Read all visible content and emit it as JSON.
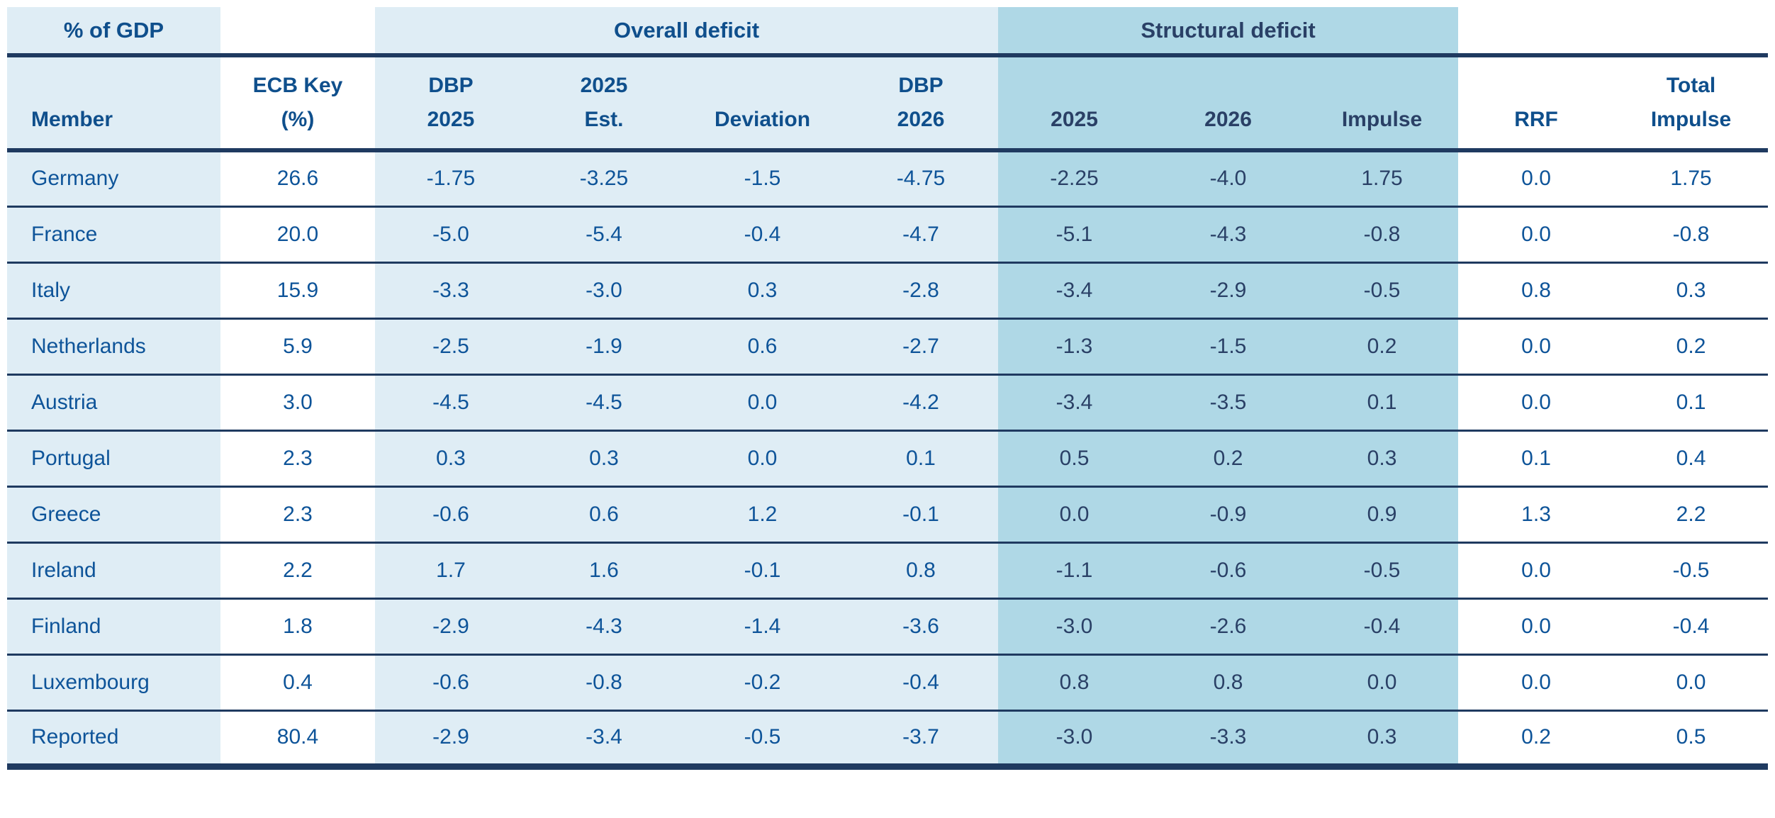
{
  "colors": {
    "light-bg": "#dfedf5",
    "structural-bg": "#afd8e6",
    "border": "#1f3a60",
    "text-blue": "#0e5499",
    "text-navy": "#2a4066",
    "header-blue": "#0f4f8c"
  },
  "chart_data": {
    "type": "table",
    "corner_label": "% of GDP",
    "groups": [
      {
        "label": "Overall deficit",
        "columns": [
          "DBP 2025",
          "2025 Est.",
          "Deviation",
          "DBP 2026"
        ]
      },
      {
        "label": "Structural deficit",
        "columns": [
          "2025",
          "2026",
          "Impulse"
        ]
      }
    ],
    "columns": [
      "Member",
      "ECB Key (%)",
      "DBP 2025",
      "2025 Est.",
      "Deviation",
      "DBP 2026",
      "2025",
      "2026",
      "Impulse",
      "RRF",
      "Total Impulse"
    ],
    "header_lines": [
      [
        "Member"
      ],
      [
        "ECB Key",
        "(%)"
      ],
      [
        "DBP",
        "2025"
      ],
      [
        "2025",
        "Est."
      ],
      [
        "Deviation"
      ],
      [
        "DBP",
        "2026"
      ],
      [
        "2025"
      ],
      [
        "2026"
      ],
      [
        "Impulse"
      ],
      [
        "RRF"
      ],
      [
        "Total",
        "Impulse"
      ]
    ],
    "rows": [
      {
        "member": "Germany",
        "values": [
          "26.6",
          "-1.75",
          "-3.25",
          "-1.5",
          "-4.75",
          "-2.25",
          "-4.0",
          "1.75",
          "0.0",
          "1.75"
        ]
      },
      {
        "member": "France",
        "values": [
          "20.0",
          "-5.0",
          "-5.4",
          "-0.4",
          "-4.7",
          "-5.1",
          "-4.3",
          "-0.8",
          "0.0",
          "-0.8"
        ]
      },
      {
        "member": "Italy",
        "values": [
          "15.9",
          "-3.3",
          "-3.0",
          "0.3",
          "-2.8",
          "-3.4",
          "-2.9",
          "-0.5",
          "0.8",
          "0.3"
        ]
      },
      {
        "member": "Netherlands",
        "values": [
          "5.9",
          "-2.5",
          "-1.9",
          "0.6",
          "-2.7",
          "-1.3",
          "-1.5",
          "0.2",
          "0.0",
          "0.2"
        ]
      },
      {
        "member": "Austria",
        "values": [
          "3.0",
          "-4.5",
          "-4.5",
          "0.0",
          "-4.2",
          "-3.4",
          "-3.5",
          "0.1",
          "0.0",
          "0.1"
        ]
      },
      {
        "member": "Portugal",
        "values": [
          "2.3",
          "0.3",
          "0.3",
          "0.0",
          "0.1",
          "0.5",
          "0.2",
          "0.3",
          "0.1",
          "0.4"
        ]
      },
      {
        "member": "Greece",
        "values": [
          "2.3",
          "-0.6",
          "0.6",
          "1.2",
          "-0.1",
          "0.0",
          "-0.9",
          "0.9",
          "1.3",
          "2.2"
        ]
      },
      {
        "member": "Ireland",
        "values": [
          "2.2",
          "1.7",
          "1.6",
          "-0.1",
          "0.8",
          "-1.1",
          "-0.6",
          "-0.5",
          "0.0",
          "-0.5"
        ]
      },
      {
        "member": "Finland",
        "values": [
          "1.8",
          "-2.9",
          "-4.3",
          "-1.4",
          "-3.6",
          "-3.0",
          "-2.6",
          "-0.4",
          "0.0",
          "-0.4"
        ]
      },
      {
        "member": "Luxembourg",
        "values": [
          "0.4",
          "-0.6",
          "-0.8",
          "-0.2",
          "-0.4",
          "0.8",
          "0.8",
          "0.0",
          "0.0",
          "0.0"
        ]
      },
      {
        "member": "Reported",
        "values": [
          "80.4",
          "-2.9",
          "-3.4",
          "-0.5",
          "-3.7",
          "-3.0",
          "-3.3",
          "0.3",
          "0.2",
          "0.5"
        ]
      }
    ]
  }
}
